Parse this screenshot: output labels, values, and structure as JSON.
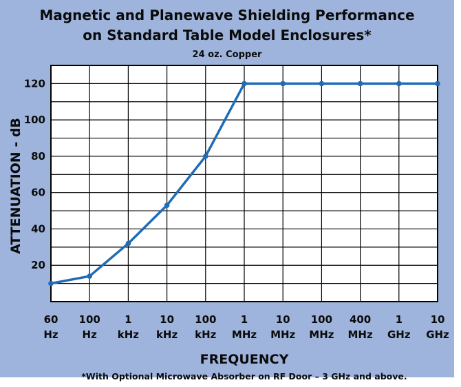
{
  "chart_data": {
    "type": "line",
    "title": "Magnetic and Planewave Shielding Performance",
    "title_line2": "on Standard Table Model Enclosures*",
    "subtitle": "24 oz. Copper",
    "xlabel": "FREQUENCY",
    "ylabel": "ATTENUATION - dB",
    "footnote": "*With Optional Microwave Absorber on RF Door – 3 GHz and above.",
    "categories": [
      [
        "60",
        "Hz"
      ],
      [
        "100",
        "Hz"
      ],
      [
        "1",
        "kHz"
      ],
      [
        "10",
        "kHz"
      ],
      [
        "100",
        "kHz"
      ],
      [
        "1",
        "MHz"
      ],
      [
        "10",
        "MHz"
      ],
      [
        "100",
        "MHz"
      ],
      [
        "400",
        "MHz"
      ],
      [
        "1",
        "GHz"
      ],
      [
        "10",
        "GHz"
      ]
    ],
    "values": [
      10,
      14,
      32,
      53,
      80,
      120,
      120,
      120,
      120,
      120,
      120
    ],
    "ylim": [
      0,
      130
    ],
    "yticks": [
      20,
      40,
      60,
      80,
      100,
      120
    ],
    "grid": true,
    "line_color": "#1f6bb5",
    "background_color": "#9eb4dc",
    "plot_color": "#ffffff"
  }
}
